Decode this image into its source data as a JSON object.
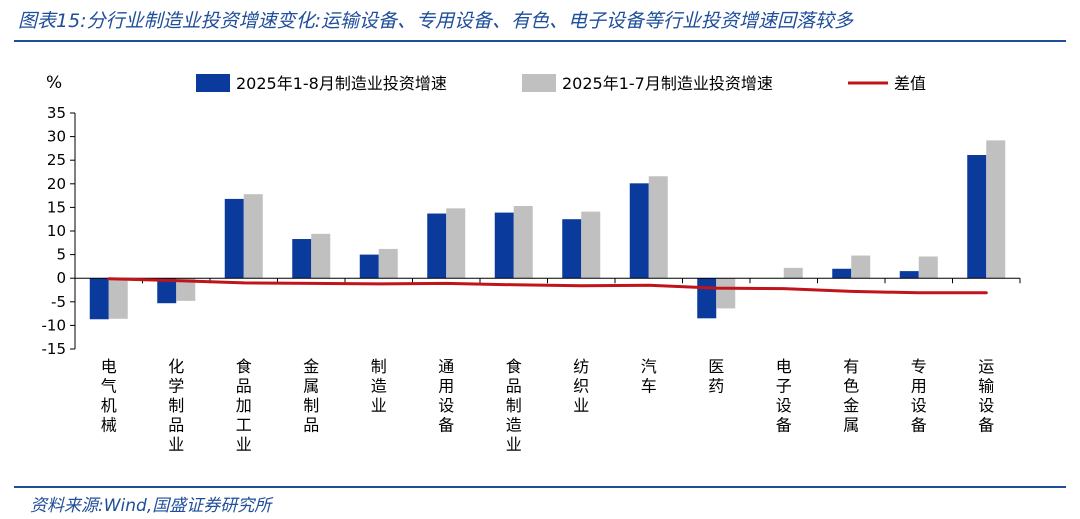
{
  "header": {
    "title": "图表15:分行业制造业投资增速变化:运输设备、专用设备、有色、电子设备等行业投资增速回落较多"
  },
  "footer": {
    "source": "资料来源:Wind,国盛证券研究所"
  },
  "chart_data": {
    "type": "bar",
    "y_unit": "%",
    "ylim": [
      -15,
      35
    ],
    "y_ticks": [
      35,
      30,
      25,
      20,
      15,
      10,
      5,
      0,
      -5,
      -10,
      -15
    ],
    "grid": false,
    "legend_position": "top",
    "categories": [
      "电气机械",
      "化学制品业",
      "食品加工业",
      "金属制品",
      "制造业",
      "通用设备",
      "食品制造业",
      "纺织业",
      "汽车",
      "医药",
      "电子设备",
      "有色金属",
      "专用设备",
      "运输设备"
    ],
    "series": [
      {
        "name": "2025年1-8月制造业投资增速",
        "kind": "bar",
        "color": "#0a3a9c",
        "values": [
          -8.7,
          -5.3,
          16.8,
          8.3,
          5.0,
          13.7,
          13.9,
          12.5,
          20.1,
          -8.5,
          0.0,
          2.0,
          1.5,
          26.1
        ]
      },
      {
        "name": "2025年1-7月制造业投资增速",
        "kind": "bar",
        "color": "#c0c0c0",
        "values": [
          -8.6,
          -4.8,
          17.8,
          9.4,
          6.2,
          14.8,
          15.3,
          14.1,
          21.6,
          -6.4,
          2.2,
          4.8,
          4.6,
          29.2
        ]
      },
      {
        "name": "差值",
        "kind": "line",
        "color": "#c0141a",
        "values": [
          -0.1,
          -0.5,
          -1.0,
          -1.1,
          -1.2,
          -1.1,
          -1.4,
          -1.6,
          -1.5,
          -2.1,
          -2.2,
          -2.8,
          -3.1,
          -3.1
        ]
      }
    ]
  }
}
